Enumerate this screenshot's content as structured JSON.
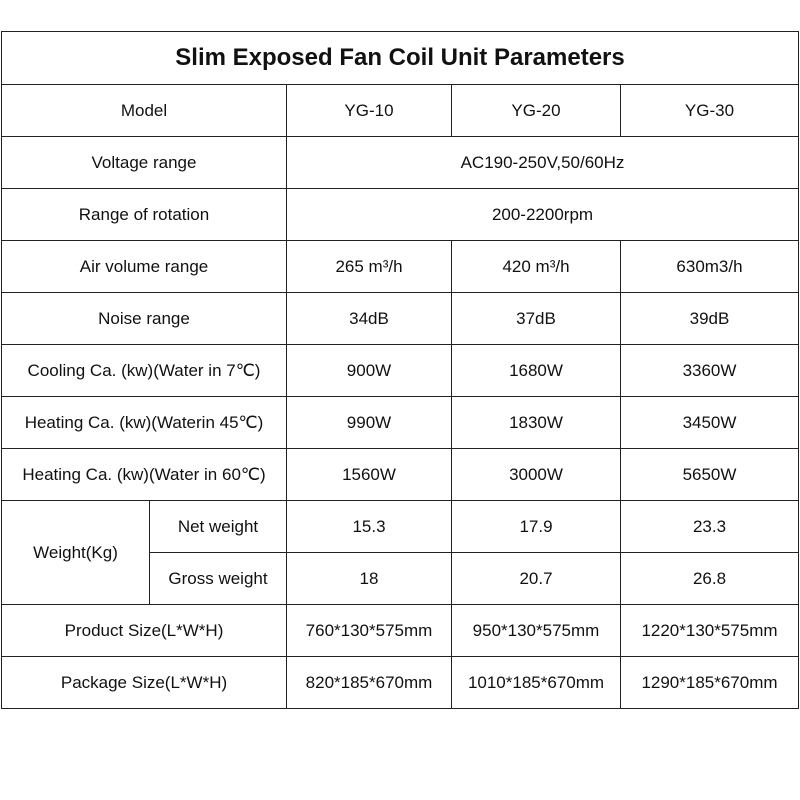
{
  "title": "Slim Exposed Fan Coil Unit Parameters",
  "model": {
    "label": "Model",
    "values": [
      "YG-10",
      "YG-20",
      "YG-30"
    ]
  },
  "voltage": {
    "label": "Voltage range",
    "value": "AC190-250V,50/60Hz"
  },
  "rotation": {
    "label": "Range of rotation",
    "value": "200-2200rpm"
  },
  "air_volume": {
    "label": "Air volume range",
    "values": [
      "265  m³/h",
      "420  m³/h",
      "630m3/h"
    ]
  },
  "noise": {
    "label": "Noise range",
    "values": [
      "34dB",
      "37dB",
      "39dB"
    ]
  },
  "cooling": {
    "label": "Cooling Ca. (kw)(Water in 7℃)",
    "values": [
      "900W",
      "1680W",
      "3360W"
    ]
  },
  "heating45": {
    "label": "Heating Ca. (kw)(Waterin 45℃)",
    "values": [
      "990W",
      "1830W",
      "3450W"
    ]
  },
  "heating60": {
    "label": "Heating Ca. (kw)(Water in 60℃)",
    "values": [
      "1560W",
      "3000W",
      "5650W"
    ]
  },
  "weight": {
    "label": "Weight(Kg)",
    "net": {
      "label": "Net weight",
      "values": [
        "15.3",
        "17.9",
        "23.3"
      ]
    },
    "gross": {
      "label": "Gross weight",
      "values": [
        "18",
        "20.7",
        "26.8"
      ]
    }
  },
  "product_size": {
    "label": "Product Size(L*W*H)",
    "values": [
      "760*130*575mm",
      "950*130*575mm",
      "1220*130*575mm"
    ]
  },
  "package_size": {
    "label": "Package Size(L*W*H)",
    "values": [
      "820*185*670mm",
      "1010*185*670mm",
      "1290*185*670mm"
    ]
  }
}
